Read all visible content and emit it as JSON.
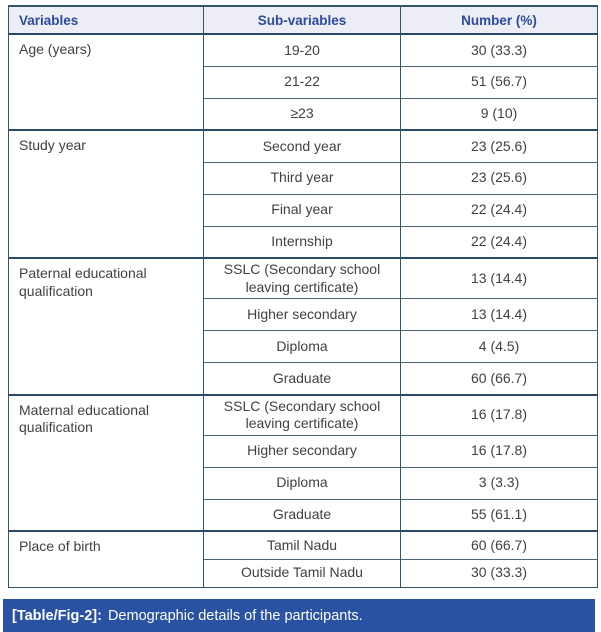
{
  "table": {
    "headers": [
      "Variables",
      "Sub-variables",
      "Number (%)"
    ],
    "groups": [
      {
        "variable": "Age (years)",
        "rows": [
          {
            "sub": "19-20",
            "number": "30 (33.3)"
          },
          {
            "sub": "21-22",
            "number": "51 (56.7)"
          },
          {
            "sub": "≥23",
            "number": "9 (10)"
          }
        ]
      },
      {
        "variable": "Study year",
        "rows": [
          {
            "sub": "Second year",
            "number": "23 (25.6)"
          },
          {
            "sub": "Third year",
            "number": "23 (25.6)"
          },
          {
            "sub": "Final year",
            "number": "22 (24.4)"
          },
          {
            "sub": "Internship",
            "number": "22 (24.4)"
          }
        ]
      },
      {
        "variable": "Paternal educational qualification",
        "rows": [
          {
            "sub": "SSLC (Secondary school leaving certificate)",
            "number": "13 (14.4)"
          },
          {
            "sub": "Higher secondary",
            "number": "13 (14.4)"
          },
          {
            "sub": "Diploma",
            "number": "4 (4.5)"
          },
          {
            "sub": "Graduate",
            "number": "60 (66.7)"
          }
        ]
      },
      {
        "variable": "Maternal educational qualification",
        "rows": [
          {
            "sub": "SSLC (Secondary school leaving certificate)",
            "number": "16 (17.8)"
          },
          {
            "sub": "Higher secondary",
            "number": "16 (17.8)"
          },
          {
            "sub": "Diploma",
            "number": "3 (3.3)"
          },
          {
            "sub": "Graduate",
            "number": "55 (61.1)"
          }
        ]
      },
      {
        "variable": "Place of birth",
        "rows": [
          {
            "sub": "Tamil Nadu",
            "number": "60 (66.7)"
          },
          {
            "sub": "Outside Tamil Nadu",
            "number": "30 (33.3)"
          }
        ]
      }
    ]
  },
  "caption": {
    "label": "[Table/Fig-2]:",
    "text": "Demographic details of the participants."
  },
  "colors": {
    "outer_border": "#315668",
    "inner_border": "#4a6478",
    "group_border": "#29496b",
    "header_bg": "#ededf6",
    "header_text": "#2b4b9e",
    "body_text": "#414143",
    "caption_bg": "#2a52a2",
    "caption_text": "#ffffff"
  },
  "chart_data": {
    "type": "table",
    "title": "[Table/Fig-2]: Demographic details of the participants.",
    "columns": [
      "Variables",
      "Sub-variables",
      "Number (%)"
    ],
    "rows": [
      [
        "Age (years)",
        "19-20",
        "30 (33.3)"
      ],
      [
        "Age (years)",
        "21-22",
        "51 (56.7)"
      ],
      [
        "Age (years)",
        "≥23",
        "9 (10)"
      ],
      [
        "Study year",
        "Second year",
        "23 (25.6)"
      ],
      [
        "Study year",
        "Third year",
        "23 (25.6)"
      ],
      [
        "Study year",
        "Final year",
        "22 (24.4)"
      ],
      [
        "Study year",
        "Internship",
        "22 (24.4)"
      ],
      [
        "Paternal educational qualification",
        "SSLC (Secondary school leaving certificate)",
        "13 (14.4)"
      ],
      [
        "Paternal educational qualification",
        "Higher secondary",
        "13 (14.4)"
      ],
      [
        "Paternal educational qualification",
        "Diploma",
        "4 (4.5)"
      ],
      [
        "Paternal educational qualification",
        "Graduate",
        "60 (66.7)"
      ],
      [
        "Maternal educational qualification",
        "SSLC (Secondary school leaving certificate)",
        "16 (17.8)"
      ],
      [
        "Maternal educational qualification",
        "Higher secondary",
        "16 (17.8)"
      ],
      [
        "Maternal educational qualification",
        "Diploma",
        "3 (3.3)"
      ],
      [
        "Maternal educational qualification",
        "Graduate",
        "55 (61.1)"
      ],
      [
        "Place of birth",
        "Tamil Nadu",
        "60 (66.7)"
      ],
      [
        "Place of birth",
        "Outside Tamil Nadu",
        "30 (33.3)"
      ]
    ]
  }
}
